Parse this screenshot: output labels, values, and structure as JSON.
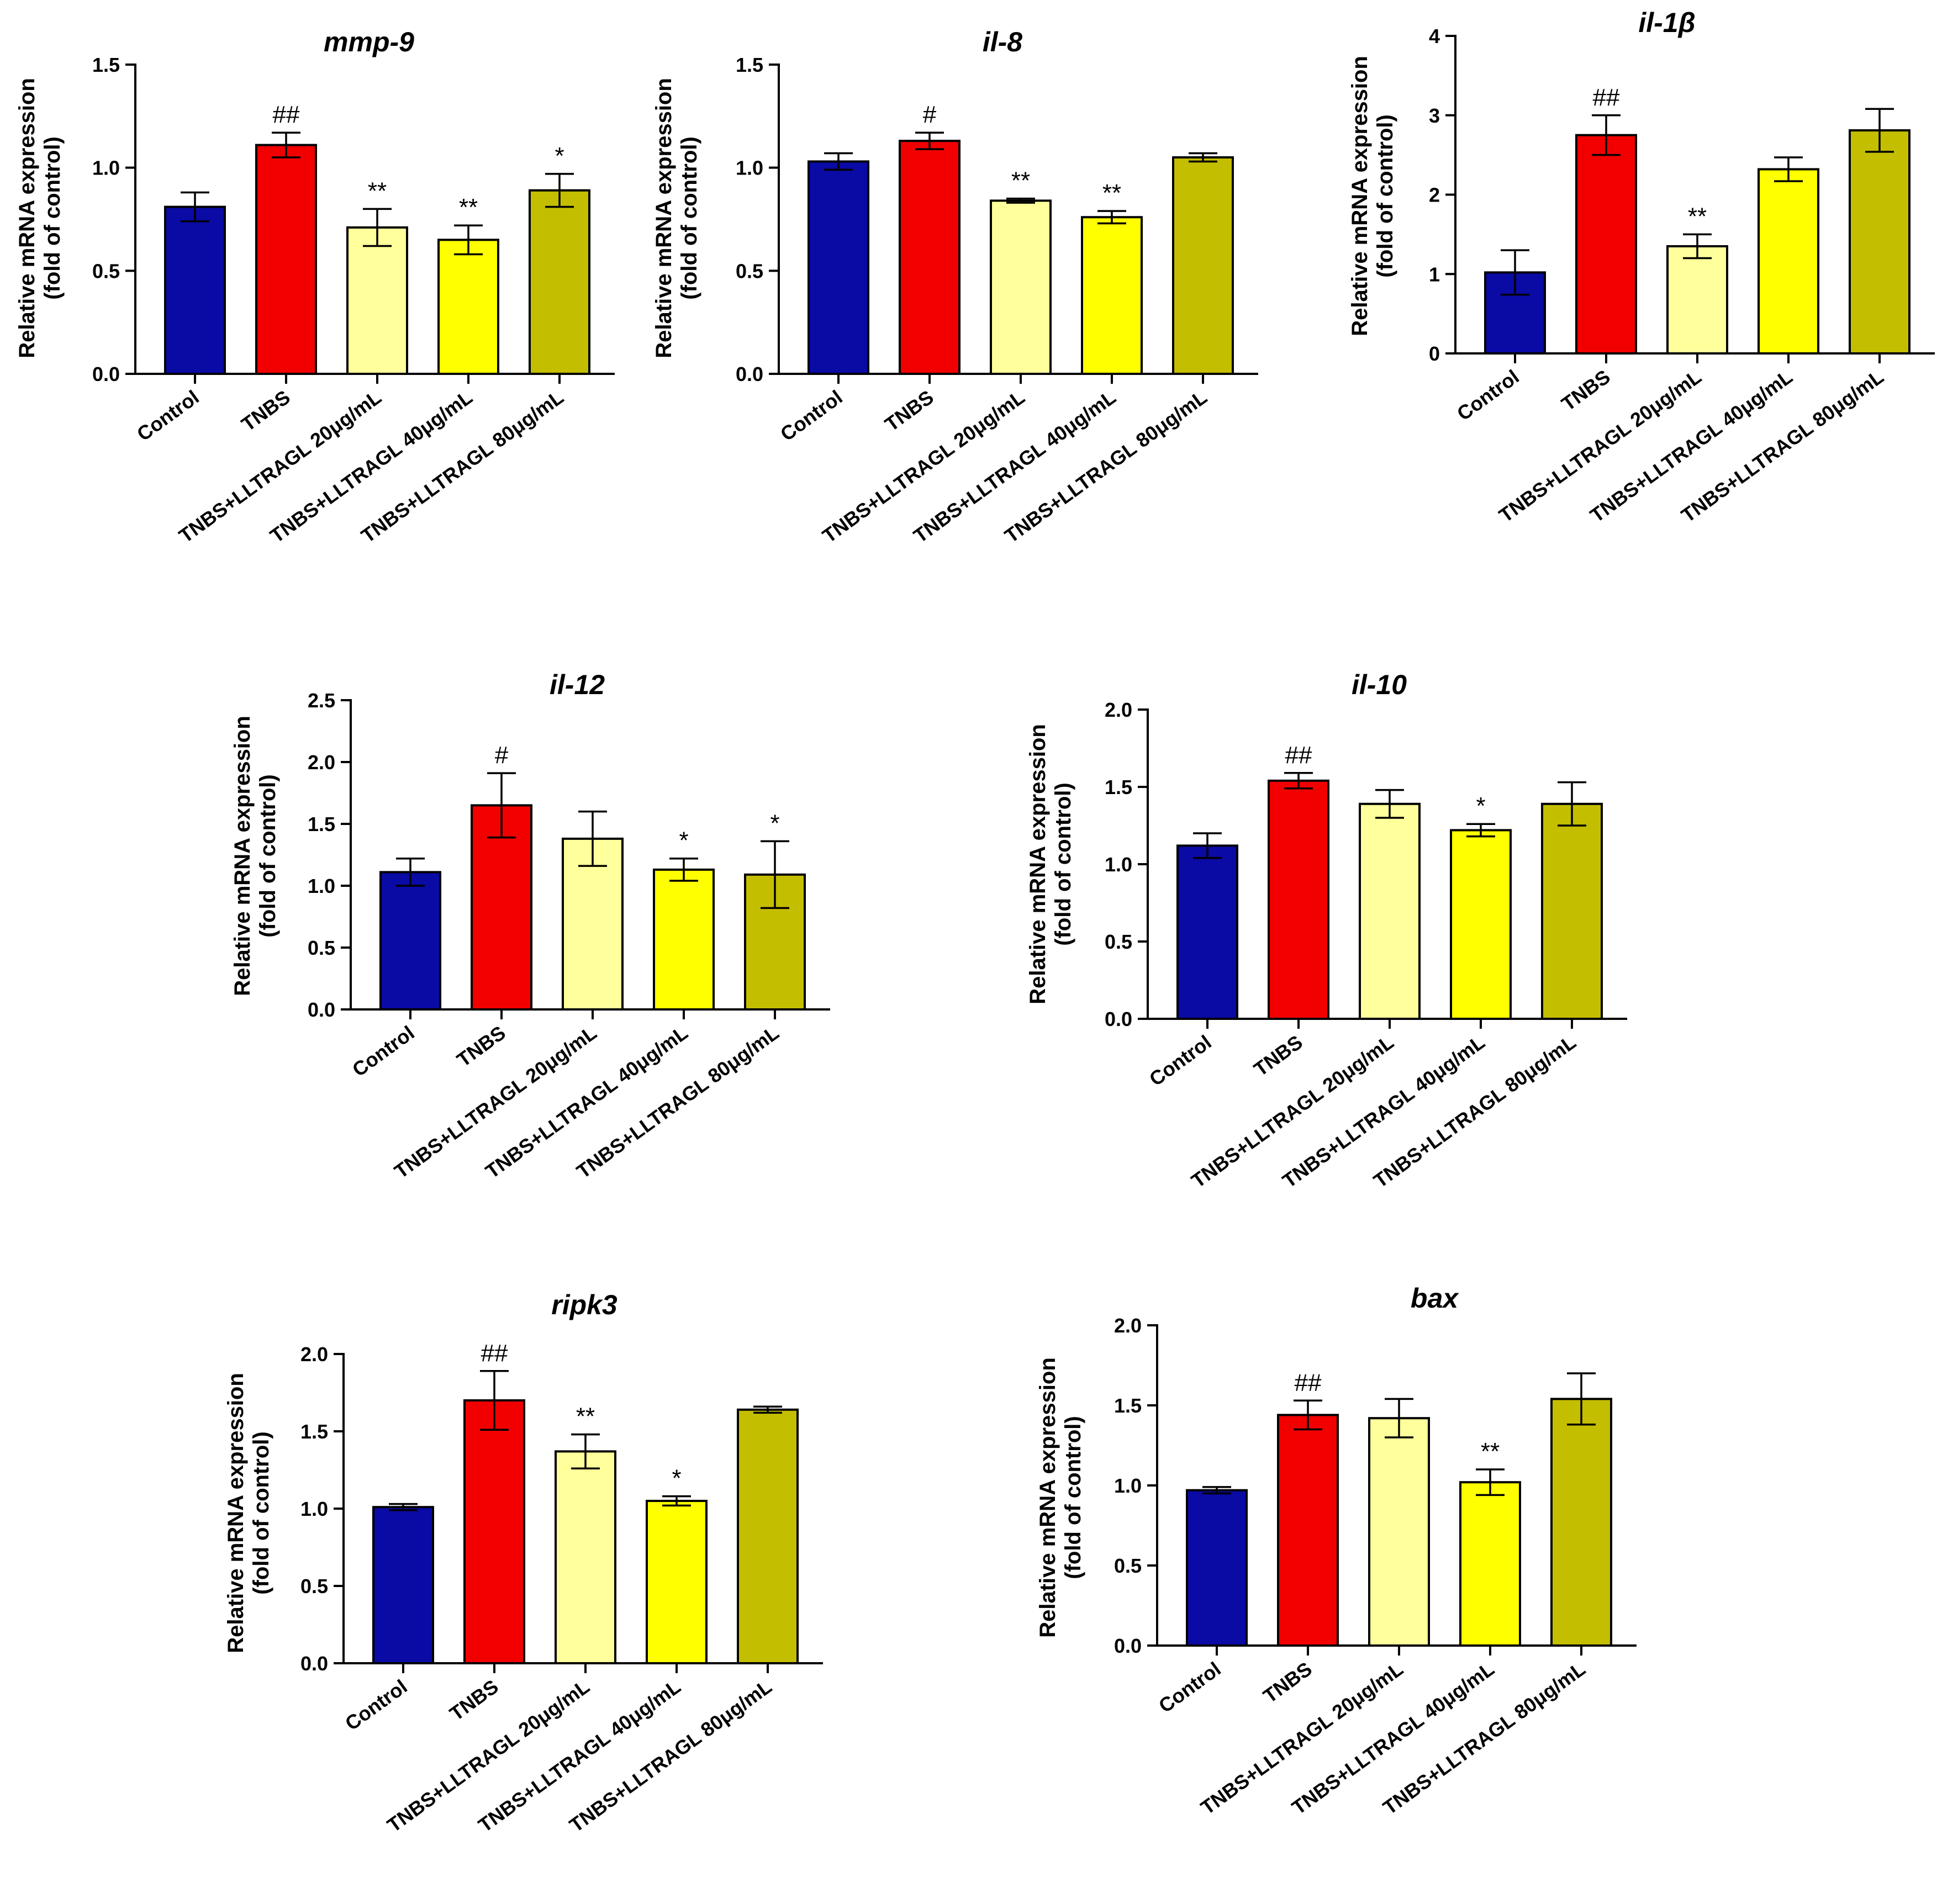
{
  "ylabel_line1": "Relative mRNA expression",
  "ylabel_line2": "(fold of control)",
  "colors": {
    "Control": "#0a0aa5",
    "TNBS": "#f20000",
    "TNBS+LLTRAGL 20μg/mL": "#ffff9c",
    "TNBS+LLTRAGL 40μg/mL": "#ffff00",
    "TNBS+LLTRAGL 80μg/mL": "#c4be00"
  },
  "chart_data": [
    {
      "type": "bar",
      "title": "mmp-9",
      "ylabel": "Relative mRNA expression (fold of control)",
      "categories": [
        "Control",
        "TNBS",
        "TNBS+LLTRAGL 20μg/mL",
        "TNBS+LLTRAGL 40μg/mL",
        "TNBS+LLTRAGL 80μg/mL"
      ],
      "values": [
        0.81,
        1.11,
        0.71,
        0.65,
        0.89
      ],
      "errors": [
        0.07,
        0.06,
        0.09,
        0.07,
        0.08
      ],
      "significance": [
        "",
        "##",
        "**",
        "**",
        "*"
      ],
      "ylim": [
        0,
        1.5
      ],
      "yticks": [
        0.0,
        0.5,
        1.0,
        1.5
      ],
      "tick_labels": [
        "0.0",
        "0.5",
        "1.0",
        "1.5"
      ]
    },
    {
      "type": "bar",
      "title": "il-8",
      "ylabel": "Relative mRNA expression (fold of control)",
      "categories": [
        "Control",
        "TNBS",
        "TNBS+LLTRAGL 20μg/mL",
        "TNBS+LLTRAGL 40μg/mL",
        "TNBS+LLTRAGL 80μg/mL"
      ],
      "values": [
        1.03,
        1.13,
        0.84,
        0.76,
        1.05
      ],
      "errors": [
        0.04,
        0.04,
        0.01,
        0.03,
        0.02
      ],
      "significance": [
        "",
        "#",
        "**",
        "**",
        ""
      ],
      "ylim": [
        0,
        1.5
      ],
      "yticks": [
        0.0,
        0.5,
        1.0,
        1.5
      ],
      "tick_labels": [
        "0.0",
        "0.5",
        "1.0",
        "1.5"
      ]
    },
    {
      "type": "bar",
      "title": "il-1β",
      "ylabel": "Relative mRNA expression (fold of control)",
      "categories": [
        "Control",
        "TNBS",
        "TNBS+LLTRAGL 20μg/mL",
        "TNBS+LLTRAGL 40μg/mL",
        "TNBS+LLTRAGL 80μg/mL"
      ],
      "values": [
        1.02,
        2.75,
        1.35,
        2.32,
        2.81
      ],
      "errors": [
        0.28,
        0.25,
        0.15,
        0.15,
        0.27
      ],
      "significance": [
        "",
        "##",
        "**",
        "",
        ""
      ],
      "ylim": [
        0,
        4
      ],
      "yticks": [
        0,
        1,
        2,
        3,
        4
      ],
      "tick_labels": [
        "0",
        "1",
        "2",
        "3",
        "4"
      ]
    },
    {
      "type": "bar",
      "title": "il-12",
      "ylabel": "Relative mRNA expression (fold of control)",
      "categories": [
        "Control",
        "TNBS",
        "TNBS+LLTRAGL 20μg/mL",
        "TNBS+LLTRAGL 40μg/mL",
        "TNBS+LLTRAGL 80μg/mL"
      ],
      "values": [
        1.11,
        1.65,
        1.38,
        1.13,
        1.09
      ],
      "errors": [
        0.11,
        0.26,
        0.22,
        0.09,
        0.27
      ],
      "significance": [
        "",
        "#",
        "",
        "*",
        "*"
      ],
      "ylim": [
        0,
        2.5
      ],
      "yticks": [
        0.0,
        0.5,
        1.0,
        1.5,
        2.0,
        2.5
      ],
      "tick_labels": [
        "0.0",
        "0.5",
        "1.0",
        "1.5",
        "2.0",
        "2.5"
      ]
    },
    {
      "type": "bar",
      "title": "il-10",
      "ylabel": "Relative mRNA expression (fold of control)",
      "categories": [
        "Control",
        "TNBS",
        "TNBS+LLTRAGL 20μg/mL",
        "TNBS+LLTRAGL 40μg/mL",
        "TNBS+LLTRAGL 80μg/mL"
      ],
      "values": [
        1.12,
        1.54,
        1.39,
        1.22,
        1.39
      ],
      "errors": [
        0.08,
        0.05,
        0.09,
        0.04,
        0.14
      ],
      "significance": [
        "",
        "##",
        "",
        "*",
        ""
      ],
      "ylim": [
        0,
        2.0
      ],
      "yticks": [
        0.0,
        0.5,
        1.0,
        1.5,
        2.0
      ],
      "tick_labels": [
        "0.0",
        "0.5",
        "1.0",
        "1.5",
        "2.0"
      ]
    },
    {
      "type": "bar",
      "title": "ripk3",
      "ylabel": "Relative mRNA expression (fold of control)",
      "categories": [
        "Control",
        "TNBS",
        "TNBS+LLTRAGL 20μg/mL",
        "TNBS+LLTRAGL 40μg/mL",
        "TNBS+LLTRAGL 80μg/mL"
      ],
      "values": [
        1.01,
        1.7,
        1.37,
        1.05,
        1.64
      ],
      "errors": [
        0.02,
        0.19,
        0.11,
        0.03,
        0.02
      ],
      "significance": [
        "",
        "##",
        "**",
        "*",
        ""
      ],
      "ylim": [
        0,
        2.0
      ],
      "yticks": [
        0.0,
        0.5,
        1.0,
        1.5,
        2.0
      ],
      "tick_labels": [
        "0.0",
        "0.5",
        "1.0",
        "1.5",
        "2.0"
      ]
    },
    {
      "type": "bar",
      "title": "bax",
      "ylabel": "Relative mRNA expression (fold of control)",
      "categories": [
        "Control",
        "TNBS",
        "TNBS+LLTRAGL 20μg/mL",
        "TNBS+LLTRAGL 40μg/mL",
        "TNBS+LLTRAGL 80μg/mL"
      ],
      "values": [
        0.97,
        1.44,
        1.42,
        1.02,
        1.54
      ],
      "errors": [
        0.02,
        0.09,
        0.12,
        0.08,
        0.16
      ],
      "significance": [
        "",
        "##",
        "",
        "**",
        ""
      ],
      "ylim": [
        0,
        2.0
      ],
      "yticks": [
        0.0,
        0.5,
        1.0,
        1.5,
        2.0
      ],
      "tick_labels": [
        "0.0",
        "0.5",
        "1.0",
        "1.5",
        "2.0"
      ]
    }
  ]
}
